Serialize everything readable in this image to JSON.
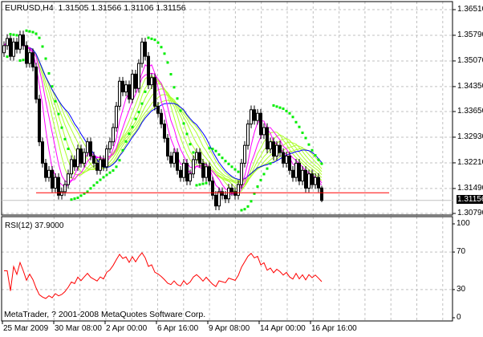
{
  "header": {
    "symbol": "EURUSD,H4",
    "ohlc_text": "1.31505 1.31566 1.31106 1.31156"
  },
  "current_price_label": "1.31156",
  "rsi_title": "RSI(12) 37.9000",
  "copyright": "MetaTrader, ? 2001-2008 MetaQuotes Software Corp.",
  "colors": {
    "bull_candle": "#ffffff",
    "bear_candle": "#000000",
    "sar": "#00ee00",
    "ma_fast": "#ff00ff",
    "ma_slow": "#0000ff",
    "ma_ribbon": "#adff2f",
    "level_line": "#ff0000",
    "rsi_line": "#ff0000",
    "grid": "#c0c0c0"
  },
  "chart_data": [
    {
      "type": "candlestick",
      "title": "EURUSD,H4",
      "price_ticks": [
        "1.36510",
        "1.35790",
        "1.35070",
        "1.34350",
        "1.33650",
        "1.32930",
        "1.32210",
        "1.31490",
        "1.30790"
      ],
      "ylim": [
        1.3079,
        1.3651
      ],
      "grid": true,
      "time_labels": [
        {
          "bar": 0,
          "label": "25 Mar 2009"
        },
        {
          "bar": 16,
          "label": "30 Mar 08:00"
        },
        {
          "bar": 32,
          "label": "2 Apr 00:00"
        },
        {
          "bar": 48,
          "label": "6 Apr 16:00"
        },
        {
          "bar": 64,
          "label": "9 Apr 08:00"
        },
        {
          "bar": 80,
          "label": "14 Apr 00:00"
        },
        {
          "bar": 96,
          "label": "16 Apr 16:00"
        }
      ],
      "first_open": 1.353,
      "close": [
        1.355,
        1.357,
        1.352,
        1.356,
        1.354,
        1.358,
        1.355,
        1.35,
        1.353,
        1.349,
        1.34,
        1.328,
        1.322,
        1.318,
        1.32,
        1.315,
        1.318,
        1.313,
        1.314,
        1.316,
        1.319,
        1.323,
        1.321,
        1.326,
        1.322,
        1.325,
        1.328,
        1.324,
        1.322,
        1.32,
        1.323,
        1.321,
        1.326,
        1.328,
        1.332,
        1.338,
        1.345,
        1.342,
        1.344,
        1.34,
        1.347,
        1.343,
        1.35,
        1.356,
        1.352,
        1.344,
        1.346,
        1.338,
        1.336,
        1.333,
        1.329,
        1.324,
        1.322,
        1.325,
        1.32,
        1.318,
        1.322,
        1.317,
        1.319,
        1.323,
        1.325,
        1.322,
        1.318,
        1.321,
        1.317,
        1.313,
        1.31,
        1.314,
        1.313,
        1.312,
        1.315,
        1.314,
        1.313,
        1.316,
        1.322,
        1.327,
        1.333,
        1.337,
        1.334,
        1.336,
        1.33,
        1.332,
        1.326,
        1.328,
        1.324,
        1.327,
        1.325,
        1.322,
        1.324,
        1.32,
        1.318,
        1.322,
        1.317,
        1.32,
        1.315,
        1.319,
        1.316,
        1.318,
        1.31505,
        1.31156
      ],
      "last_bar": {
        "open": 1.31505,
        "high": 1.31566,
        "low": 1.31106,
        "close": 1.31156
      },
      "horizontal_level": 1.3137,
      "indicators": {
        "ma_fast_periods": [
          5,
          8
        ],
        "ma_ribbon_periods": [
          10,
          12,
          14,
          16,
          18,
          20
        ],
        "ma_slow_periods": [
          21
        ],
        "sar": {
          "step": 0.02,
          "max": 0.2
        }
      }
    },
    {
      "type": "line",
      "title": "RSI(12) 37.9000",
      "period": 12,
      "ylim": [
        0,
        100
      ],
      "levels": [
        "100",
        "70",
        "30",
        "0"
      ],
      "grid": true
    }
  ]
}
